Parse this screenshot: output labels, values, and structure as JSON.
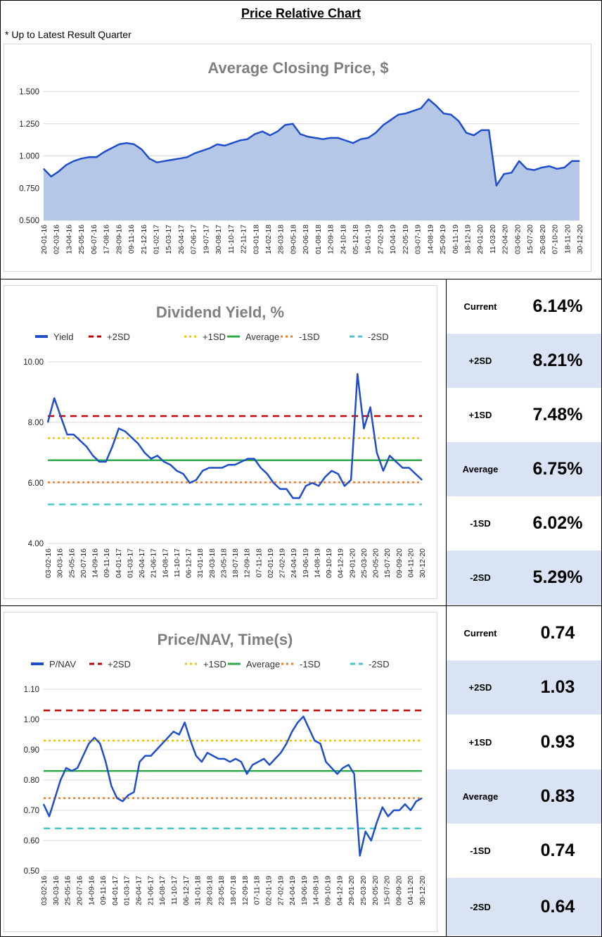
{
  "page": {
    "title": "Price Relative Chart",
    "note": "* Up to Latest Result Quarter"
  },
  "colors": {
    "line": "#1f4ec9",
    "area_fill": "#b4c7e7",
    "plus2sd": "#c00000",
    "plus1sd": "#f5c100",
    "average": "#2eaa48",
    "minus1sd": "#f07c24",
    "minus2sd": "#4ec6c9",
    "grid": "#d9d9d9",
    "shade": "#dae3f3"
  },
  "chart_data": [
    {
      "type": "area",
      "title": "Average Closing Price, $",
      "xlabel": "",
      "ylabel": "",
      "ylim": [
        0.5,
        1.5
      ],
      "y_ticks": [
        "0.500",
        "0.750",
        "1.000",
        "1.250",
        "1.500"
      ],
      "x_ticks": [
        "20-01-16",
        "02-03-16",
        "13-04-16",
        "25-05-16",
        "06-07-16",
        "17-08-16",
        "28-09-16",
        "09-11-16",
        "21-12-16",
        "01-02-17",
        "15-03-17",
        "26-04-17",
        "07-06-17",
        "19-07-17",
        "30-08-17",
        "11-10-17",
        "22-11-17",
        "03-01-18",
        "14-02-18",
        "28-03-18",
        "09-05-18",
        "20-06-18",
        "01-08-18",
        "12-09-18",
        "24-10-18",
        "05-12-18",
        "16-01-19",
        "27-02-19",
        "10-04-19",
        "22-05-19",
        "03-07-19",
        "14-08-19",
        "25-09-19",
        "06-11-19",
        "18-12-19",
        "29-01-20",
        "11-03-20",
        "22-04-20",
        "03-06-20",
        "15-07-20",
        "26-08-20",
        "07-10-20",
        "18-11-20",
        "30-12-20"
      ],
      "series": [
        {
          "name": "Average Closing Price",
          "values": [
            0.9,
            0.84,
            0.88,
            0.93,
            0.96,
            0.98,
            0.99,
            0.99,
            1.03,
            1.06,
            1.09,
            1.1,
            1.09,
            1.05,
            0.98,
            0.95,
            0.96,
            0.97,
            0.98,
            0.99,
            1.02,
            1.04,
            1.06,
            1.09,
            1.08,
            1.1,
            1.12,
            1.13,
            1.17,
            1.19,
            1.16,
            1.19,
            1.24,
            1.25,
            1.17,
            1.15,
            1.14,
            1.13,
            1.14,
            1.14,
            1.12,
            1.1,
            1.13,
            1.14,
            1.18,
            1.24,
            1.28,
            1.32,
            1.33,
            1.35,
            1.37,
            1.44,
            1.39,
            1.33,
            1.32,
            1.27,
            1.18,
            1.16,
            1.2,
            1.2,
            0.77,
            0.86,
            0.87,
            0.96,
            0.9,
            0.89,
            0.91,
            0.92,
            0.9,
            0.91,
            0.96,
            0.96
          ]
        }
      ]
    },
    {
      "type": "line",
      "title": "Dividend Yield, %",
      "xlabel": "",
      "ylabel": "",
      "ylim": [
        4.0,
        10.0
      ],
      "y_ticks": [
        "4.00",
        "6.00",
        "8.00",
        "10.00"
      ],
      "legend": [
        "Yield",
        "+2SD",
        "+1SD",
        "Average",
        "-1SD",
        "-2SD"
      ],
      "x_ticks": [
        "03-02-16",
        "30-03-16",
        "25-05-16",
        "20-07-16",
        "14-09-16",
        "09-11-16",
        "04-01-17",
        "01-03-17",
        "26-04-17",
        "21-06-17",
        "16-08-17",
        "11-10-17",
        "06-12-17",
        "31-01-18",
        "28-03-18",
        "23-05-18",
        "18-07-18",
        "12-09-18",
        "07-11-18",
        "02-01-19",
        "27-02-19",
        "24-04-19",
        "19-06-19",
        "14-08-19",
        "09-10-19",
        "04-12-19",
        "29-01-20",
        "25-03-20",
        "20-05-20",
        "15-07-20",
        "09-09-20",
        "04-11-20",
        "30-12-20"
      ],
      "reference_lines": {
        "plus2sd": 8.21,
        "plus1sd": 7.48,
        "average": 6.75,
        "minus1sd": 6.02,
        "minus2sd": 5.29
      },
      "series": [
        {
          "name": "Yield",
          "values": [
            8.0,
            8.8,
            8.2,
            7.6,
            7.6,
            7.4,
            7.2,
            6.9,
            6.7,
            6.7,
            7.2,
            7.8,
            7.7,
            7.5,
            7.3,
            7.0,
            6.8,
            6.9,
            6.7,
            6.6,
            6.4,
            6.3,
            6.0,
            6.1,
            6.4,
            6.5,
            6.5,
            6.5,
            6.6,
            6.6,
            6.7,
            6.8,
            6.8,
            6.5,
            6.3,
            6.0,
            5.8,
            5.8,
            5.5,
            5.5,
            5.9,
            6.0,
            5.9,
            6.2,
            6.4,
            6.3,
            5.9,
            6.1,
            9.6,
            7.8,
            8.5,
            7.0,
            6.4,
            6.9,
            6.7,
            6.5,
            6.5,
            6.3,
            6.1
          ]
        }
      ]
    },
    {
      "type": "line",
      "title": "Price/NAV, Time(s)",
      "xlabel": "",
      "ylabel": "",
      "ylim": [
        0.5,
        1.1
      ],
      "y_ticks": [
        "0.50",
        "0.60",
        "0.70",
        "0.80",
        "0.90",
        "1.00",
        "1.10"
      ],
      "legend": [
        "P/NAV",
        "+2SD",
        "+1SD",
        "Average",
        "-1SD",
        "-2SD"
      ],
      "x_ticks": [
        "03-02-16",
        "30-03-16",
        "25-05-16",
        "20-07-16",
        "14-09-16",
        "09-11-16",
        "04-01-17",
        "01-03-17",
        "26-04-17",
        "21-06-17",
        "16-08-17",
        "11-10-17",
        "06-12-17",
        "31-01-18",
        "28-03-18",
        "23-05-18",
        "18-07-18",
        "12-09-18",
        "07-11-18",
        "02-01-19",
        "27-02-19",
        "24-04-19",
        "19-06-19",
        "14-08-19",
        "09-10-19",
        "04-12-19",
        "29-01-20",
        "25-03-20",
        "20-05-20",
        "15-07-20",
        "09-09-20",
        "04-11-20",
        "30-12-20"
      ],
      "reference_lines": {
        "plus2sd": 1.03,
        "plus1sd": 0.93,
        "average": 0.83,
        "minus1sd": 0.74,
        "minus2sd": 0.64
      },
      "series": [
        {
          "name": "P/NAV",
          "values": [
            0.72,
            0.68,
            0.74,
            0.8,
            0.84,
            0.83,
            0.84,
            0.88,
            0.92,
            0.94,
            0.92,
            0.86,
            0.78,
            0.74,
            0.73,
            0.75,
            0.76,
            0.86,
            0.88,
            0.88,
            0.9,
            0.92,
            0.94,
            0.96,
            0.95,
            0.99,
            0.93,
            0.88,
            0.86,
            0.89,
            0.88,
            0.87,
            0.87,
            0.86,
            0.87,
            0.86,
            0.82,
            0.85,
            0.86,
            0.87,
            0.85,
            0.87,
            0.89,
            0.92,
            0.96,
            0.99,
            1.01,
            0.97,
            0.93,
            0.92,
            0.86,
            0.84,
            0.82,
            0.84,
            0.85,
            0.82,
            0.55,
            0.63,
            0.6,
            0.66,
            0.71,
            0.68,
            0.7,
            0.7,
            0.72,
            0.7,
            0.73,
            0.74
          ]
        }
      ]
    }
  ],
  "dividend_yield_stats": [
    {
      "label": "Current",
      "value": "6.14%"
    },
    {
      "label": "+2SD",
      "value": "8.21%"
    },
    {
      "label": "+1SD",
      "value": "7.48%"
    },
    {
      "label": "Average",
      "value": "6.75%"
    },
    {
      "label": "-1SD",
      "value": "6.02%"
    },
    {
      "label": "-2SD",
      "value": "5.29%"
    }
  ],
  "pnav_stats": [
    {
      "label": "Current",
      "value": "0.74"
    },
    {
      "label": "+2SD",
      "value": "1.03"
    },
    {
      "label": "+1SD",
      "value": "0.93"
    },
    {
      "label": "Average",
      "value": "0.83"
    },
    {
      "label": "-1SD",
      "value": "0.74"
    },
    {
      "label": "-2SD",
      "value": "0.64"
    }
  ]
}
